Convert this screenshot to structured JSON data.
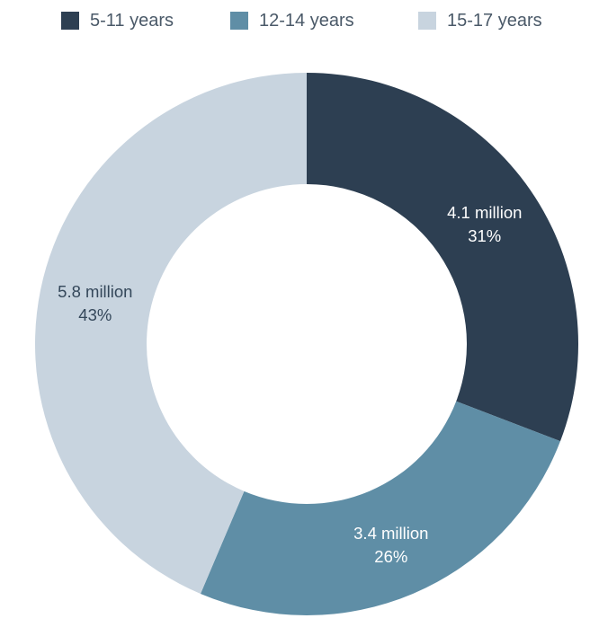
{
  "chart_data": {
    "type": "pie",
    "variant": "donut",
    "categories": [
      "5-11 years",
      "12-14 years",
      "15-17 years"
    ],
    "values": [
      4.1,
      3.4,
      5.8
    ],
    "unit": "million",
    "percent_labels": [
      "31%",
      "26%",
      "43%"
    ],
    "value_labels": [
      "4.1 million",
      "3.4 million",
      "5.8 million"
    ],
    "colors": [
      "#2d3f52",
      "#5f8ea6",
      "#c8d4df"
    ],
    "label_colors": [
      "#ffffff",
      "#ffffff",
      "#34475a"
    ],
    "legend_position": "top",
    "title": ""
  },
  "legend": {
    "items": [
      {
        "label": "5-11 years",
        "color": "#2d3f52"
      },
      {
        "label": "12-14 years",
        "color": "#5f8ea6"
      },
      {
        "label": "15-17 years",
        "color": "#c8d4df"
      }
    ]
  }
}
